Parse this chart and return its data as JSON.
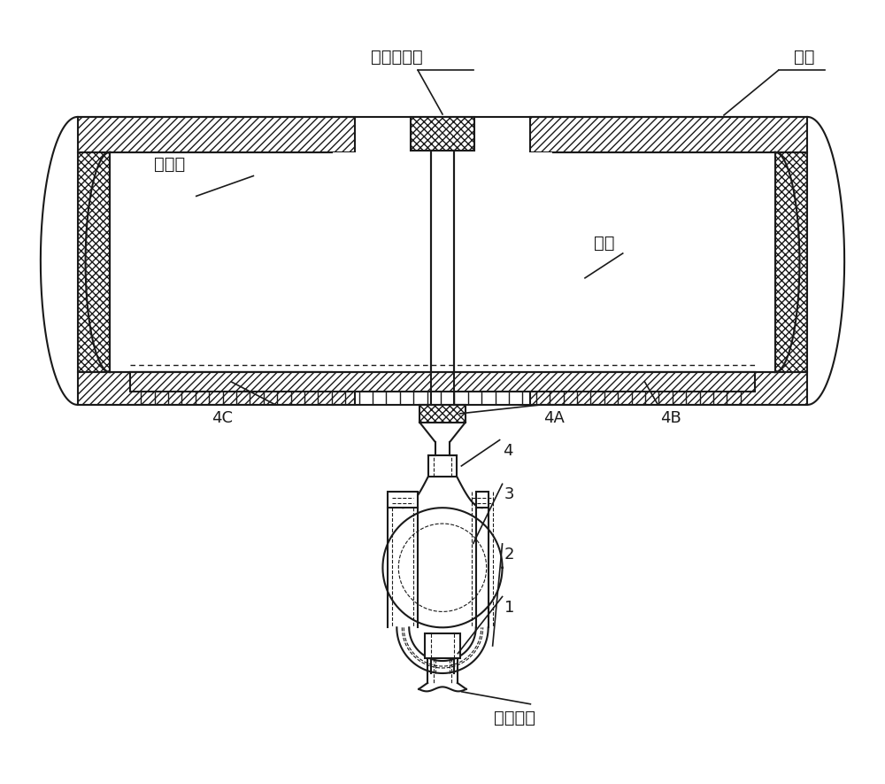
{
  "bg_color": "#ffffff",
  "line_color": "#1a1a1a",
  "labels": {
    "water_tape": "水溦性胶带",
    "pipe": "管道",
    "water_paper": "水溦纸",
    "argon": "氩气",
    "argon_tube": "氩气导管",
    "num1": "1",
    "num2": "2",
    "num3": "3",
    "num4": "4",
    "num4A": "4A",
    "num4B": "4B",
    "num4C": "4C"
  },
  "figsize": [
    10.0,
    8.85
  ],
  "dpi": 100
}
